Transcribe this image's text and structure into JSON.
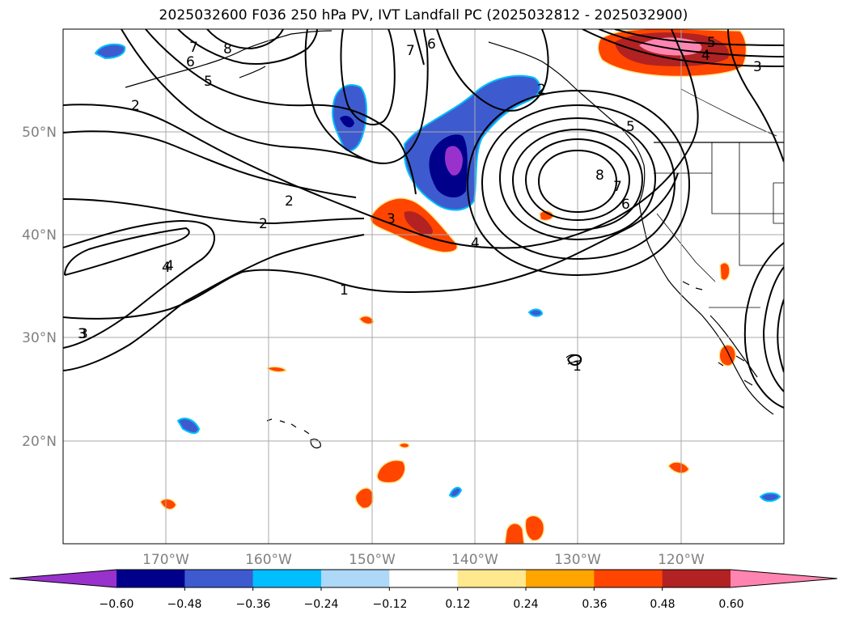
{
  "title": "2025032600 F036 250 hPa PV, IVT Landfall PC (2025032812 - 2025032900)",
  "axes": {
    "lon_labels": [
      "170°W",
      "160°W",
      "150°W",
      "140°W",
      "130°W",
      "120°W"
    ],
    "lat_labels": [
      "50°N",
      "40°N",
      "30°N",
      "20°N"
    ],
    "grid": true,
    "tick_label_color": "#808080"
  },
  "colorbar": {
    "orientation": "horizontal",
    "extend": "both",
    "tick_labels": [
      "−0.60",
      "−0.48",
      "−0.36",
      "−0.24",
      "−0.12",
      "0.12",
      "0.24",
      "0.36",
      "0.48",
      "0.60"
    ],
    "colors": [
      "#9932cc",
      "#00008b",
      "#3d5bcf",
      "#00bfff",
      "#add8f7",
      "#ffffff",
      "#ffe88e",
      "#ffa500",
      "#ff4500",
      "#b22222",
      "#ff85b0"
    ]
  },
  "contour_labels": [
    "7",
    "8",
    "6",
    "5",
    "2",
    "7",
    "6",
    "2",
    "2",
    "2",
    "3",
    "4",
    "8",
    "7",
    "6",
    "5",
    "4",
    "3",
    "5",
    "4",
    "3",
    "1",
    "4",
    "3",
    "1"
  ]
}
